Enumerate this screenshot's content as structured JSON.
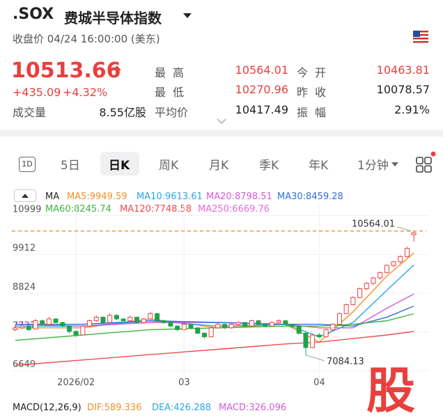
{
  "header": {
    "symbol": ".SOX",
    "name": "费城半导体指数",
    "status": "收盘价 04/24 16:00:00 (美东)"
  },
  "quote": {
    "price": 10513.66,
    "change": "+435.09",
    "change_pct": "+4.32%",
    "stats": [
      {
        "label": "最高",
        "value": 10564.01
      },
      {
        "label": "今开",
        "value": 10463.81
      },
      {
        "label": "最低",
        "value": 10270.96
      },
      {
        "label": "昨收",
        "value": 10078.57
      },
      {
        "label": "成交量",
        "value": "8.55亿股"
      },
      {
        "label": "平均价",
        "value": 10417.49
      },
      {
        "label": "振幅",
        "value": "2.91%"
      }
    ]
  },
  "tabs": [
    "1D",
    "5日",
    "日K",
    "周K",
    "月K",
    "季K",
    "年K",
    "1分钟"
  ],
  "chart_data": {
    "type": "candlestick",
    "up_color": "#e8403f",
    "down_color": "#1fa34a",
    "candles": [
      [
        7800,
        7920,
        7760,
        7850
      ],
      [
        7850,
        7960,
        7820,
        7900
      ],
      [
        7900,
        7930,
        7760,
        7800
      ],
      [
        7820,
        8100,
        7800,
        8050
      ],
      [
        8050,
        8080,
        7920,
        7950
      ],
      [
        7950,
        8150,
        7930,
        8100
      ],
      [
        8100,
        8120,
        7980,
        8000
      ],
      [
        8000,
        8020,
        7870,
        7900
      ],
      [
        7900,
        7920,
        7700,
        7750
      ],
      [
        7750,
        7780,
        7600,
        7650
      ],
      [
        7650,
        7930,
        7640,
        7900
      ],
      [
        7900,
        8080,
        7880,
        8050
      ],
      [
        8050,
        8200,
        8020,
        8150
      ],
      [
        8150,
        8170,
        7980,
        8000
      ],
      [
        8000,
        8260,
        7990,
        8200
      ],
      [
        8200,
        8230,
        8070,
        8100
      ],
      [
        8100,
        8120,
        8000,
        8050
      ],
      [
        8050,
        8190,
        8030,
        8150
      ],
      [
        8150,
        8160,
        7970,
        8000
      ],
      [
        8000,
        8130,
        7980,
        8100
      ],
      [
        8100,
        8290,
        8090,
        8250
      ],
      [
        8250,
        8270,
        8020,
        8050
      ],
      [
        8050,
        8080,
        7960,
        8000
      ],
      [
        8000,
        8020,
        7870,
        7900
      ],
      [
        7900,
        7920,
        7760,
        7800
      ],
      [
        7800,
        7990,
        7780,
        7950
      ],
      [
        7950,
        7970,
        7820,
        7850
      ],
      [
        7850,
        7870,
        7670,
        7700
      ],
      [
        7700,
        7720,
        7560,
        7600
      ],
      [
        7600,
        7880,
        7590,
        7850
      ],
      [
        7850,
        7990,
        7830,
        7950
      ],
      [
        7950,
        7970,
        7820,
        7850
      ],
      [
        7850,
        7980,
        7830,
        7950
      ],
      [
        7950,
        8040,
        7930,
        8000
      ],
      [
        8000,
        8020,
        7870,
        7900
      ],
      [
        7900,
        8080,
        7880,
        8050
      ],
      [
        8050,
        8070,
        7920,
        7950
      ],
      [
        7950,
        7970,
        7870,
        7900
      ],
      [
        7900,
        8030,
        7880,
        8000
      ],
      [
        8000,
        8090,
        7980,
        8050
      ],
      [
        8050,
        8070,
        7920,
        7950
      ],
      [
        7950,
        7970,
        7860,
        7900
      ],
      [
        7900,
        7920,
        7660,
        7700
      ],
      [
        7700,
        7720,
        7084.13,
        7300
      ],
      [
        7300,
        7690,
        7280,
        7650
      ],
      [
        7650,
        7700,
        7560,
        7600
      ],
      [
        7600,
        7830,
        7580,
        7800
      ],
      [
        7800,
        7980,
        7780,
        7950
      ],
      [
        7950,
        8280,
        7930,
        8250
      ],
      [
        8250,
        8530,
        8230,
        8500
      ],
      [
        8500,
        8730,
        8480,
        8700
      ],
      [
        8700,
        8980,
        8680,
        8950
      ],
      [
        8950,
        9130,
        8900,
        9100
      ],
      [
        9100,
        9280,
        9050,
        9250
      ],
      [
        9250,
        9430,
        9200,
        9400
      ],
      [
        9400,
        9630,
        9380,
        9600
      ],
      [
        9600,
        9730,
        9550,
        9700
      ],
      [
        9700,
        9880,
        9650,
        9850
      ],
      [
        9850,
        10120,
        9820,
        10078.57
      ],
      [
        10463.81,
        10564.01,
        10270.96,
        10513.66
      ]
    ],
    "ma": {
      "title": "MA",
      "x": [
        0,
        10,
        20,
        30,
        40,
        45,
        50,
        55,
        59
      ],
      "series": [
        {
          "name": "MA5:9949.59",
          "color": "#f5902a",
          "values": [
            7850,
            7850,
            8100,
            7850,
            7950,
            7450,
            8300,
            9300,
            9949.59
          ]
        },
        {
          "name": "MA10:9613.61",
          "color": "#2aa6e8",
          "values": [
            7900,
            7900,
            8050,
            7900,
            7950,
            7600,
            8000,
            8900,
            9613.61
          ]
        },
        {
          "name": "MA20:8798.51",
          "color": "#d45ad8",
          "values": [
            7950,
            7900,
            8000,
            8000,
            7950,
            7850,
            7850,
            8400,
            8798.51
          ]
        },
        {
          "name": "MA30:8459.28",
          "color": "#2f6fdc",
          "values": [
            7950,
            7950,
            8050,
            8000,
            7950,
            7950,
            7900,
            8150,
            8459.28
          ]
        },
        {
          "name": "MA60:8245.74",
          "color": "#3db53d",
          "values": [
            7500,
            7650,
            7800,
            7850,
            7900,
            7900,
            7950,
            8050,
            8245.74
          ]
        },
        {
          "name": "MA120:7748.58",
          "color": "#ef4b4b",
          "values": [
            6800,
            6950,
            7100,
            7250,
            7400,
            7450,
            7550,
            7650,
            7748.58
          ]
        },
        {
          "name": "MA250:6669.76",
          "color": "#e86bd8",
          "values": [
            null,
            null,
            null,
            null,
            null,
            null,
            null,
            null,
            6669.76
          ]
        }
      ]
    },
    "ylim": [
      6400,
      11300
    ],
    "yticks": [
      10999,
      9912,
      8824,
      7737,
      6649
    ],
    "xticks": [
      {
        "value": 9,
        "label": "2026/02"
      },
      {
        "value": 25,
        "label": "03"
      },
      {
        "value": 45,
        "label": "04"
      }
    ],
    "price_line": 10564.01,
    "low_annotation": 7084.13,
    "macd": {
      "title": "MACD(12,26,9)",
      "dif": "DIF:589.336",
      "dea": "DEA:426.288",
      "macd": "MACD:326.096"
    },
    "watermark": "股"
  }
}
